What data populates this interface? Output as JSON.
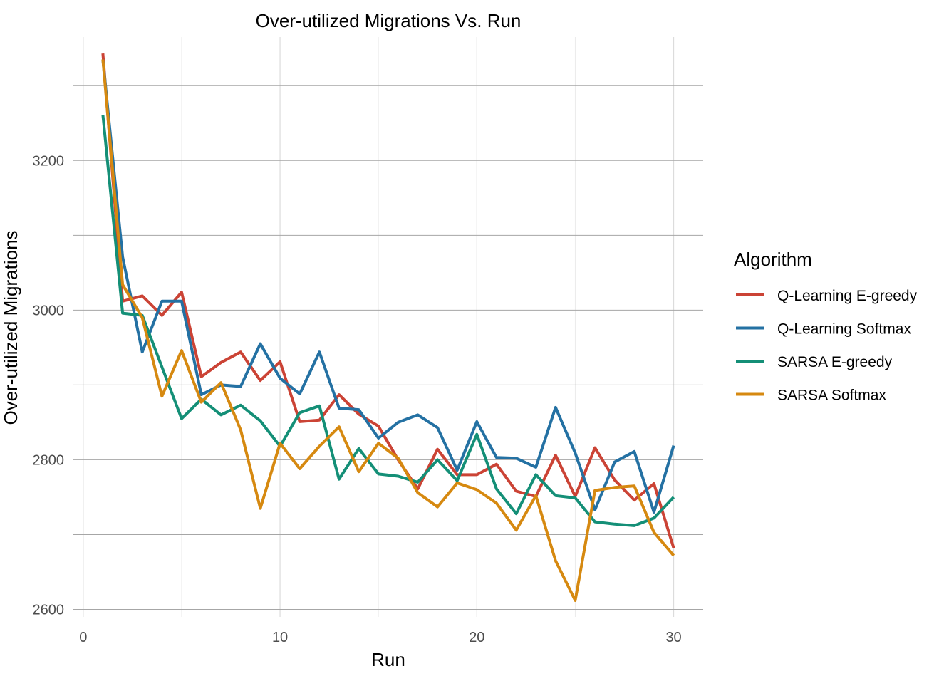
{
  "chart_data": {
    "type": "line",
    "title": "Over-utilized Migrations Vs. Run",
    "xlabel": "Run",
    "ylabel": "Over-utilized Migrations",
    "xlim": [
      -0.5,
      31.5
    ],
    "ylim": [
      2590,
      3365
    ],
    "x_ticks": [
      0,
      10,
      20,
      30
    ],
    "y_ticks": [
      2600,
      2800,
      3000,
      3200
    ],
    "grid": true,
    "legend": {
      "title": "Algorithm",
      "position": "right"
    },
    "x": [
      1,
      2,
      3,
      4,
      5,
      6,
      7,
      8,
      9,
      10,
      11,
      12,
      13,
      14,
      15,
      16,
      17,
      18,
      19,
      20,
      21,
      22,
      23,
      24,
      25,
      26,
      27,
      28,
      29,
      30
    ],
    "series": [
      {
        "name": "Q-Learning E-greedy",
        "color": "#CB4335",
        "values": [
          3343,
          3012,
          3019,
          2993,
          3024,
          2911,
          2930,
          2944,
          2906,
          2931,
          2851,
          2853,
          2887,
          2861,
          2845,
          2800,
          2761,
          2814,
          2780,
          2780,
          2794,
          2758,
          2751,
          2806,
          2751,
          2816,
          2773,
          2746,
          2768,
          2682
        ]
      },
      {
        "name": "Q-Learning Softmax",
        "color": "#2471A3",
        "values": [
          3335,
          3071,
          2944,
          3012,
          3012,
          2887,
          2900,
          2898,
          2955,
          2909,
          2888,
          2944,
          2869,
          2867,
          2829,
          2850,
          2860,
          2843,
          2786,
          2851,
          2803,
          2802,
          2790,
          2870,
          2809,
          2733,
          2797,
          2811,
          2730,
          2819
        ]
      },
      {
        "name": "SARSA E-greedy",
        "color": "#148F77",
        "values": [
          3261,
          2996,
          2993,
          2924,
          2855,
          2881,
          2860,
          2873,
          2852,
          2818,
          2863,
          2872,
          2774,
          2815,
          2781,
          2778,
          2770,
          2800,
          2772,
          2834,
          2761,
          2728,
          2780,
          2752,
          2749,
          2717,
          2714,
          2712,
          2722,
          2750
        ]
      },
      {
        "name": "SARSA Softmax",
        "color": "#D68910",
        "values": [
          3335,
          3034,
          2990,
          2885,
          2946,
          2877,
          2903,
          2840,
          2735,
          2822,
          2788,
          2818,
          2844,
          2784,
          2822,
          2802,
          2756,
          2737,
          2769,
          2760,
          2742,
          2706,
          2752,
          2665,
          2612,
          2759,
          2763,
          2765,
          2703,
          2672
        ]
      }
    ]
  }
}
